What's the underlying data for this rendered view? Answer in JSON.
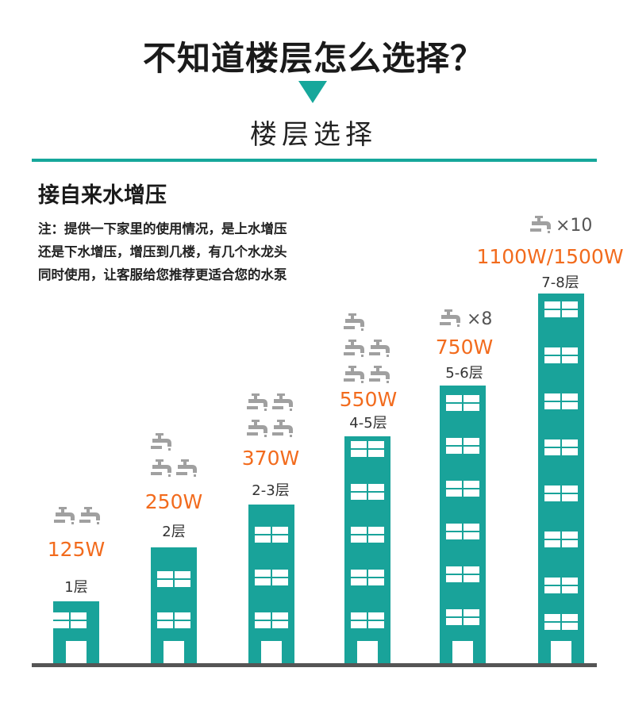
{
  "header": {
    "title": "不知道楼层怎么选择？",
    "subtitle": "楼层选择"
  },
  "section": {
    "title": "接自来水增压",
    "note_lines": [
      "注：提供一下家里的使用情况，是上水增压",
      "还是下水增压，增压到几楼，有几个水龙头",
      "同时使用，让客服给您推荐更适合您的水泵"
    ]
  },
  "tiers": [
    {
      "power": "125W",
      "floors": "1层",
      "tap_count": 2
    },
    {
      "power": "250W",
      "floors": "2层",
      "tap_count": 3
    },
    {
      "power": "370W",
      "floors": "2-3层",
      "tap_count": 4
    },
    {
      "power": "550W",
      "floors": "4-5层",
      "tap_count": 5
    },
    {
      "power": "750W",
      "floors": "5-6层",
      "tap_count": 8,
      "tap_label": "×8"
    },
    {
      "power": "1100W/1500W",
      "floors": "7-8层",
      "tap_count": 10,
      "tap_label": "×10"
    }
  ],
  "colors": {
    "accent": "#16a79b",
    "power": "#f26b1d",
    "tap_icon": "#a0a0a0"
  }
}
